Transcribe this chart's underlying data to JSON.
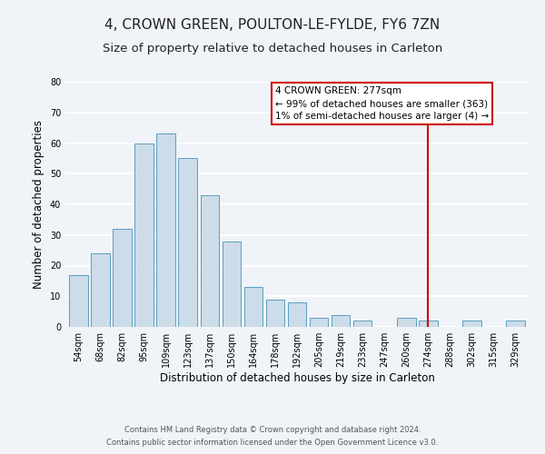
{
  "title": "4, CROWN GREEN, POULTON-LE-FYLDE, FY6 7ZN",
  "subtitle": "Size of property relative to detached houses in Carleton",
  "xlabel": "Distribution of detached houses by size in Carleton",
  "ylabel": "Number of detached properties",
  "footer_lines": [
    "Contains HM Land Registry data © Crown copyright and database right 2024.",
    "Contains public sector information licensed under the Open Government Licence v3.0."
  ],
  "bar_labels": [
    "54sqm",
    "68sqm",
    "82sqm",
    "95sqm",
    "109sqm",
    "123sqm",
    "137sqm",
    "150sqm",
    "164sqm",
    "178sqm",
    "192sqm",
    "205sqm",
    "219sqm",
    "233sqm",
    "247sqm",
    "260sqm",
    "274sqm",
    "288sqm",
    "302sqm",
    "315sqm",
    "329sqm"
  ],
  "bar_heights": [
    17,
    24,
    32,
    60,
    63,
    55,
    43,
    28,
    13,
    9,
    8,
    3,
    4,
    2,
    0,
    3,
    2,
    0,
    2,
    0,
    2
  ],
  "bar_color": "#ccdce8",
  "bar_edge_color": "#5a9ec0",
  "vline_x_index": 16,
  "vline_color": "#cc0000",
  "annotation_text": "4 CROWN GREEN: 277sqm\n← 99% of detached houses are smaller (363)\n1% of semi-detached houses are larger (4) →",
  "annotation_box_color": "#ffffff",
  "annotation_box_edge": "#cc0000",
  "ylim": [
    0,
    80
  ],
  "yticks": [
    0,
    10,
    20,
    30,
    40,
    50,
    60,
    70,
    80
  ],
  "background_color": "#f0f4f8",
  "grid_color": "#ffffff",
  "title_fontsize": 11,
  "subtitle_fontsize": 9.5,
  "axis_label_fontsize": 8.5,
  "tick_fontsize": 7,
  "footer_fontsize": 6,
  "ann_fontsize": 7.5
}
